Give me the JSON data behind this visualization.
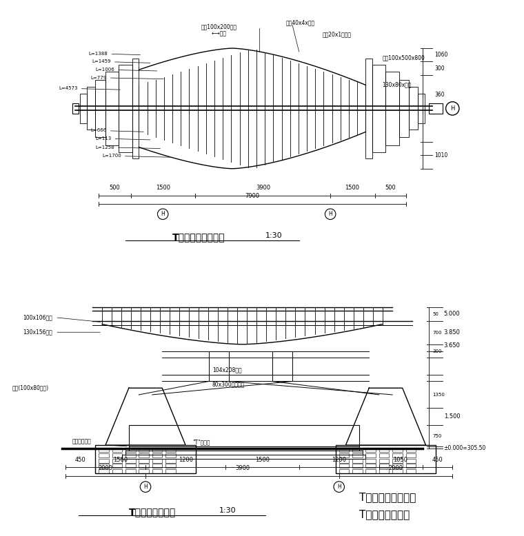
{
  "bg_color": "#ffffff",
  "line_color": "#000000",
  "title1": "T型舞台屋顶平面图",
  "title1_scale": "1:30",
  "title2": "T型舞台正立面图",
  "title2_scale": "1:30",
  "legend1": "T型舞台屋顶平面图",
  "legend2": "T型舞台正立面图"
}
